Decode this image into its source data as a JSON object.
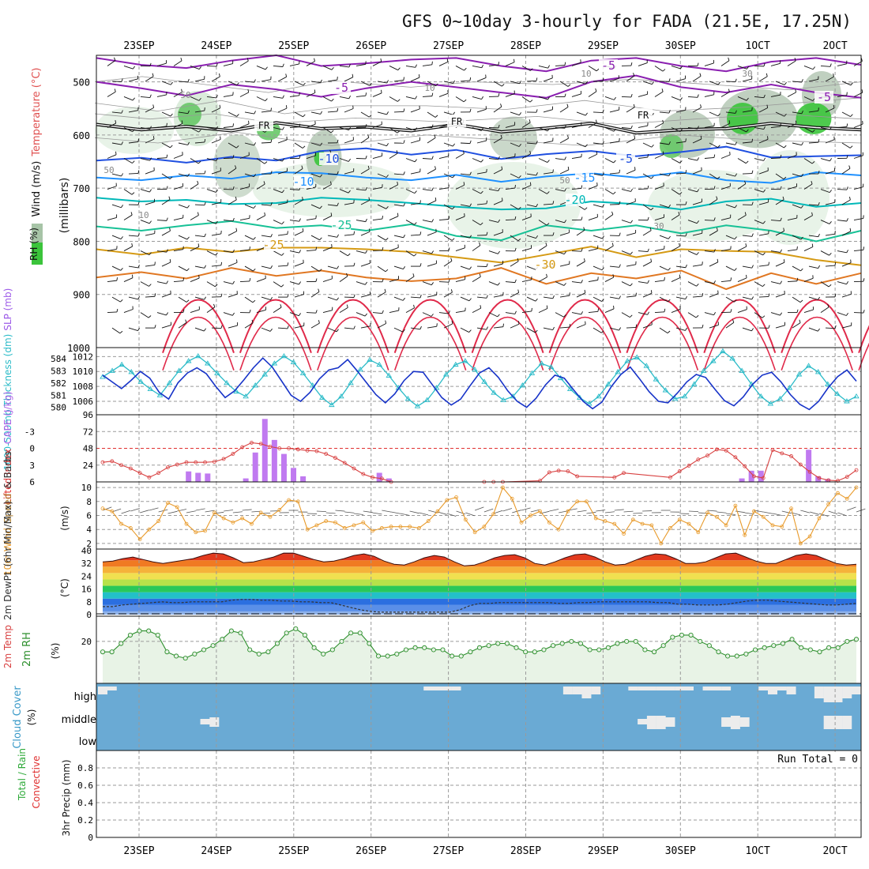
{
  "title": "GFS 0~10day 3-hourly for FADA (21.5E, 17.25N)",
  "dates": [
    "23SEP",
    "24SEP",
    "25SEP",
    "26SEP",
    "27SEP",
    "28SEP",
    "29SEP",
    "30SEP",
    "1OCT",
    "2OCT"
  ],
  "chart_data": [
    {
      "id": "upper_air",
      "type": "contour",
      "ylabel_parts": [
        "Wind (m/s)",
        "Temperature (°C)",
        "RH (%)"
      ],
      "ylabel_right": "(millibars)",
      "yticks": [
        500,
        600,
        700,
        800,
        900,
        1000
      ],
      "ylim": [
        450,
        1000
      ],
      "temperature_labels": [
        "-5",
        "-5",
        "FR",
        "FR",
        "FR",
        "-5",
        "-5",
        "-10",
        "-10",
        "-15",
        "-20",
        "-25",
        "-25",
        "-30"
      ],
      "rh_labels": [
        "50",
        "10",
        "50",
        "10",
        "10",
        "30",
        "30",
        "50"
      ],
      "isotherm_levels": [
        {
          "t": -5,
          "p": [
            455,
            468,
            474,
            460,
            450,
            470,
            465,
            458,
            455,
            470,
            480,
            460,
            455,
            470,
            480,
            462,
            455,
            468
          ]
        },
        {
          "t": -5,
          "p": [
            500,
            512,
            526,
            505,
            514,
            528,
            512,
            500,
            510,
            520,
            530,
            500,
            488,
            510,
            520,
            505,
            520,
            530
          ]
        },
        {
          "t": 0,
          "p": [
            580,
            590,
            584,
            592,
            577,
            588,
            585,
            592,
            580,
            594,
            587,
            578,
            596,
            590,
            588,
            578,
            586,
            590
          ]
        },
        {
          "t": 5,
          "p": [
            648,
            643,
            652,
            641,
            648,
            630,
            625,
            637,
            628,
            645,
            636,
            630,
            640,
            632,
            622,
            642,
            640,
            638
          ]
        },
        {
          "t": 10,
          "p": [
            680,
            685,
            676,
            682,
            670,
            672,
            680,
            685,
            675,
            688,
            678,
            672,
            680,
            670,
            685,
            690,
            670,
            676
          ]
        },
        {
          "t": 15,
          "p": [
            718,
            725,
            722,
            730,
            728,
            718,
            722,
            728,
            735,
            740,
            738,
            725,
            730,
            740,
            725,
            720,
            735,
            728
          ]
        },
        {
          "t": 20,
          "p": [
            772,
            780,
            770,
            762,
            775,
            770,
            780,
            768,
            790,
            798,
            770,
            780,
            770,
            785,
            770,
            780,
            800,
            780
          ]
        },
        {
          "t": 25,
          "p": [
            815,
            825,
            812,
            820,
            812,
            812,
            815,
            820,
            830,
            840,
            825,
            810,
            830,
            815,
            818,
            820,
            835,
            845
          ]
        },
        {
          "t": 28,
          "p": [
            868,
            858,
            870,
            850,
            865,
            855,
            868,
            875,
            870,
            850,
            880,
            860,
            870,
            855,
            890,
            860,
            880,
            860
          ]
        }
      ]
    },
    {
      "id": "slp_thickness",
      "type": "line",
      "series": [
        {
          "name": "SLP (mb)",
          "axis_ticks": [
            1006,
            1008,
            1010,
            1012
          ],
          "values": [
            1009.5,
            1008.6,
            1007.7,
            1008.8,
            1010.0,
            1009.1,
            1007.2,
            1006.3,
            1008.5,
            1009.8,
            1010.5,
            1009.7,
            1008.0,
            1006.5,
            1007.4,
            1008.9,
            1010.5,
            1011.8,
            1010.6,
            1008.7,
            1006.8,
            1006.0,
            1007.2,
            1009.0,
            1010.2,
            1010.5,
            1011.6,
            1010.1,
            1008.5,
            1006.9,
            1005.8,
            1007.0,
            1008.8,
            1010.0,
            1009.9,
            1008.2,
            1006.5,
            1005.5,
            1006.3,
            1008.1,
            1009.8,
            1010.5,
            1009.2,
            1007.4,
            1006.0,
            1005.2,
            1006.4,
            1008.2,
            1009.5,
            1009.1,
            1007.5,
            1006.0,
            1005.0,
            1005.9,
            1008.0,
            1009.6,
            1010.6,
            1009.0,
            1007.3,
            1006.0,
            1005.8,
            1007.1,
            1008.6,
            1009.6,
            1009.2,
            1007.6,
            1006.1,
            1005.4,
            1006.6,
            1008.3,
            1009.5,
            1009.9,
            1008.6,
            1006.9,
            1005.6,
            1004.9,
            1006.0,
            1007.8,
            1009.3,
            1010.2,
            1008.7
          ]
        },
        {
          "name": "1000-500mb Thickness (dm)",
          "axis_ticks": [
            580,
            581,
            582,
            583,
            584
          ],
          "values": [
            582.5,
            583.0,
            583.5,
            582.9,
            582.1,
            581.5,
            581.0,
            582.0,
            583.0,
            583.8,
            584.2,
            583.6,
            582.8,
            582.0,
            581.3,
            580.9,
            581.8,
            582.7,
            583.6,
            584.2,
            583.7,
            582.8,
            581.8,
            580.8,
            580.2,
            580.9,
            582.0,
            583.1,
            583.9,
            583.5,
            582.6,
            581.6,
            580.7,
            580.1,
            580.6,
            581.6,
            582.7,
            583.5,
            583.8,
            583.1,
            582.1,
            581.2,
            580.6,
            580.9,
            581.8,
            582.8,
            583.6,
            583.3,
            582.4,
            581.5,
            580.8,
            580.3,
            580.9,
            581.9,
            582.9,
            583.8,
            584.1,
            583.4,
            582.3,
            581.4,
            580.7,
            580.9,
            581.9,
            583.0,
            583.8,
            584.6,
            584.0,
            583.0,
            581.9,
            580.9,
            580.3,
            580.7,
            581.6,
            582.7,
            583.4,
            582.9,
            581.9,
            581.1,
            580.5,
            580.9
          ]
        }
      ]
    },
    {
      "id": "lifted_cape",
      "type": "line+bar",
      "series": [
        {
          "name": "Lifted Index",
          "axis_ticks": [
            -3,
            0,
            3,
            6
          ],
          "values": [
            2.5,
            2.3,
            3.0,
            3.6,
            4.4,
            5.2,
            4.4,
            3.4,
            2.9,
            2.5,
            2.5,
            2.5,
            2.4,
            1.9,
            1.0,
            -0.2,
            -1.0,
            -0.8,
            -0.3,
            0.0,
            0.0,
            0.2,
            0.4,
            0.5,
            1.0,
            1.7,
            2.6,
            3.6,
            4.6,
            5.2,
            5.4,
            6.0,
            6.3,
            6.8,
            7.4,
            7.6,
            7.8,
            7.9,
            7.8,
            7.7,
            7.5,
            6.0,
            6.0,
            6.0,
            7.0,
            7.6,
            7.8,
            5.8,
            4.3,
            4.0,
            4.1,
            5.0,
            6.6,
            7.0,
            6.6,
            5.2,
            4.4,
            6.6,
            7.5,
            7.9,
            7.2,
            5.2,
            4.1,
            3.1,
            2.0,
            1.3,
            0.2,
            0.4,
            1.6,
            3.2,
            5.0,
            5.3,
            0.3,
            0.9,
            1.4,
            2.9,
            4.2,
            5.3,
            5.7,
            5.8,
            5.1,
            3.9
          ]
        },
        {
          "name": "CAPE (J/kg)",
          "axis_ticks": [
            24,
            48,
            72,
            96
          ],
          "bars": [
            0,
            0,
            0,
            0,
            0,
            0,
            0,
            0,
            0,
            15,
            13,
            12,
            0,
            0,
            0,
            5,
            42,
            90,
            60,
            40,
            20,
            8,
            0,
            0,
            0,
            0,
            0,
            0,
            0,
            13,
            5,
            0,
            0,
            0,
            0,
            0,
            0,
            0,
            0,
            0,
            0,
            0,
            0,
            0,
            0,
            0,
            0,
            0,
            0,
            0,
            0,
            0,
            0,
            0,
            0,
            0,
            0,
            0,
            0,
            0,
            0,
            0,
            0,
            0,
            0,
            0,
            0,
            5,
            16,
            16,
            0,
            0,
            0,
            0,
            46,
            8,
            4,
            0,
            0,
            0
          ]
        }
      ]
    },
    {
      "id": "wind10m",
      "type": "line",
      "ylabel": "10m Wind Speed & Barbs (m/s)",
      "yticks": [
        2,
        4,
        6,
        8,
        10
      ],
      "values": [
        7.0,
        6.6,
        4.8,
        4.2,
        2.6,
        4.0,
        5.2,
        7.8,
        7.2,
        4.8,
        3.6,
        3.8,
        6.4,
        5.6,
        5.0,
        5.6,
        4.8,
        6.4,
        5.8,
        6.8,
        8.2,
        8.0,
        4.0,
        4.6,
        5.2,
        5.0,
        4.2,
        4.6,
        5.0,
        3.8,
        4.2,
        4.4,
        4.4,
        4.4,
        4.2,
        5.2,
        6.6,
        8.2,
        8.6,
        5.4,
        3.6,
        4.4,
        6.2,
        10.0,
        8.4,
        5.0,
        6.0,
        6.6,
        5.0,
        4.0,
        6.6,
        8.0,
        8.0,
        5.6,
        5.2,
        4.8,
        3.4,
        5.4,
        4.8,
        4.6,
        2.0,
        4.2,
        5.4,
        4.8,
        3.6,
        6.4,
        5.8,
        4.6,
        7.4,
        3.2,
        6.6,
        5.8,
        4.6,
        4.4,
        7.0,
        2.0,
        3.0,
        5.6,
        7.6,
        9.2,
        8.4,
        10.0
      ]
    },
    {
      "id": "temp2m",
      "type": "area",
      "ylabel": "2m Temp 2m DewPt (6hr Min/Max) (°C)",
      "yticks": [
        0,
        8,
        16,
        24,
        32,
        40
      ],
      "temperature": [
        33,
        33.5,
        35,
        36,
        34.5,
        33,
        32,
        33,
        34,
        35,
        37,
        38.5,
        38,
        35.5,
        32.5,
        33,
        34.5,
        36,
        38.5,
        38.5,
        36.5,
        34.5,
        33,
        33.5,
        35,
        37,
        38,
        36.5,
        33.5,
        31.5,
        31,
        33,
        35.5,
        37,
        36,
        33,
        30.5,
        31,
        33,
        35.5,
        37,
        37.5,
        35.5,
        32,
        31,
        33,
        35.5,
        37.5,
        38,
        36,
        33,
        31,
        31.5,
        34,
        36.5,
        38,
        37.5,
        35,
        32,
        32,
        33,
        35.5,
        38,
        38.5,
        36,
        33.5,
        32,
        32,
        34.5,
        37,
        38,
        37,
        34.5,
        32,
        31,
        31.5
      ],
      "dewpoint": [
        5,
        5,
        6,
        6.5,
        7,
        7.5,
        8,
        7.5,
        7.5,
        8,
        8,
        8,
        8,
        9,
        9.5,
        9.5,
        9,
        9,
        8.5,
        8.5,
        8,
        8,
        7.5,
        7.5,
        6,
        4.5,
        3,
        2,
        1.5,
        1.5,
        1.5,
        1.5,
        1.5,
        1.5,
        1.5,
        1.5,
        3,
        5.5,
        7,
        7,
        7.5,
        7.5,
        7.5,
        7.5,
        7.5,
        7.5,
        7,
        7,
        7.5,
        7.5,
        8,
        8,
        8,
        8,
        8,
        8,
        7.5,
        7.5,
        6.5,
        6.5,
        6,
        6,
        6,
        6.5,
        7.5,
        8.5,
        9,
        9,
        8.5,
        8,
        7.5,
        7,
        6.5,
        6,
        6,
        6.5,
        7
      ]
    },
    {
      "id": "rh2m",
      "type": "area",
      "ylabel": "2m RH (%)",
      "yticks": [
        20
      ],
      "values": [
        15,
        15,
        19,
        23,
        25,
        25,
        23,
        15,
        13,
        12,
        14,
        16,
        18,
        21,
        25,
        24,
        16,
        14,
        15,
        19,
        24,
        26,
        23,
        17,
        14,
        16,
        20,
        24,
        24,
        19,
        13,
        13,
        14,
        16,
        17,
        17,
        16,
        16,
        13,
        13,
        15,
        17,
        18,
        19,
        19,
        17,
        15,
        15,
        16,
        18,
        19,
        20,
        19,
        16,
        16,
        17,
        19,
        20,
        20,
        16,
        15,
        18,
        22,
        23,
        23,
        20,
        18,
        15,
        13,
        13,
        14,
        16,
        17,
        18,
        19,
        21,
        17,
        16,
        15,
        17,
        17,
        20,
        21
      ]
    },
    {
      "id": "cloud",
      "type": "area",
      "ylabel": "Cloud Cover (%)",
      "yticks": [
        "high",
        "middle",
        "low"
      ],
      "high": [
        2,
        1,
        0,
        0,
        0,
        0,
        0,
        0,
        0,
        0,
        0,
        0,
        0,
        0,
        0,
        0,
        0,
        0,
        0,
        0,
        0,
        0,
        0,
        0,
        0,
        0,
        0,
        0,
        0,
        0,
        0,
        0,
        0,
        0,
        0,
        1,
        1,
        1,
        1,
        0,
        0,
        0,
        0,
        0,
        0,
        0,
        0,
        0,
        0,
        0,
        2,
        2,
        3,
        2,
        0,
        0,
        0,
        1,
        1,
        1,
        1,
        1,
        1,
        1,
        0,
        1,
        1,
        1,
        0,
        0,
        0,
        1,
        2,
        1,
        2,
        0,
        0,
        3,
        4,
        4,
        3,
        2
      ],
      "middle": [
        0,
        0,
        0,
        0,
        0,
        0,
        0,
        0,
        0,
        0,
        0,
        1,
        2,
        0,
        0,
        0,
        0,
        0,
        0,
        0,
        0,
        0,
        0,
        0,
        0,
        0,
        0,
        0,
        0,
        0,
        0,
        0,
        0,
        0,
        0,
        0,
        0,
        0,
        0,
        0,
        0,
        0,
        0,
        0,
        0,
        0,
        0,
        0,
        0,
        0,
        0,
        0,
        0,
        0,
        0,
        0,
        0,
        0,
        1,
        3,
        3,
        2,
        0,
        0,
        0,
        0,
        0,
        2,
        3,
        2,
        0,
        0,
        0,
        0,
        0,
        0,
        0,
        0,
        3,
        3,
        3,
        0
      ]
    },
    {
      "id": "precip",
      "type": "bar",
      "ylabel": "Total / Rain Convective 3hr Precip (mm)",
      "yticks": [
        0,
        0.2,
        0.4,
        0.6,
        0.8
      ],
      "ylim": [
        0,
        1
      ],
      "run_total": "Run Total = 0",
      "values": []
    }
  ]
}
